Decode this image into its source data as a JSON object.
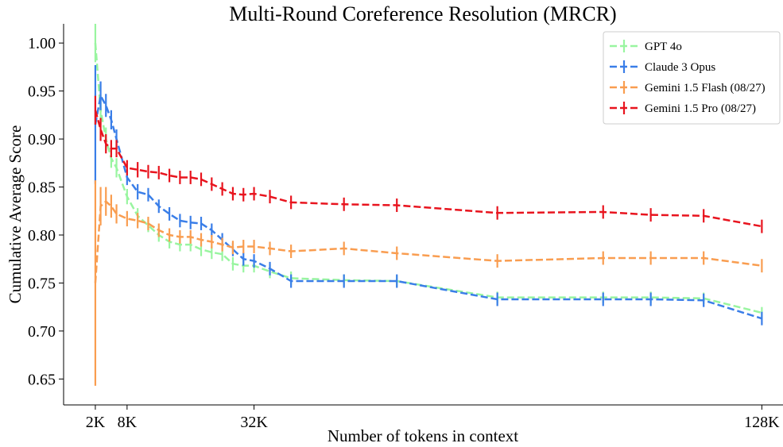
{
  "chart_data": {
    "type": "line",
    "title": "Multi-Round Coreference Resolution (MRCR)",
    "xlabel": "Number of tokens in context",
    "ylabel": "Cumulative Average Score",
    "x": [
      2000,
      3000,
      4000,
      5000,
      6000,
      8000,
      10000,
      12000,
      14000,
      16000,
      18000,
      20000,
      22000,
      24000,
      26000,
      28000,
      30000,
      32000,
      35000,
      39000,
      49000,
      59000,
      78000,
      98000,
      107000,
      117000,
      128000
    ],
    "series": [
      {
        "name": "GPT 4o",
        "color": "#99f5a0",
        "values": [
          1.0,
          0.93,
          0.9,
          0.88,
          0.87,
          0.84,
          0.82,
          0.81,
          0.8,
          0.793,
          0.79,
          0.79,
          0.785,
          0.782,
          0.78,
          0.77,
          0.768,
          0.768,
          0.762,
          0.755,
          0.753,
          0.752,
          0.735,
          0.735,
          0.735,
          0.734,
          0.719
        ],
        "errors": [
          0.02,
          0.015,
          0.012,
          0.01,
          0.01,
          0.008,
          0.008,
          0.007,
          0.007,
          0.007,
          0.007,
          0.007,
          0.007,
          0.007,
          0.007,
          0.007,
          0.007,
          0.007,
          0.007,
          0.007,
          0.006,
          0.006,
          0.006,
          0.006,
          0.006,
          0.006,
          0.006
        ]
      },
      {
        "name": "Claude 3 Opus",
        "color": "#3a7ee8",
        "values": [
          0.915,
          0.945,
          0.935,
          0.92,
          0.9,
          0.86,
          0.845,
          0.842,
          0.83,
          0.822,
          0.815,
          0.813,
          0.812,
          0.805,
          0.795,
          0.785,
          0.775,
          0.773,
          0.765,
          0.752,
          0.752,
          0.752,
          0.733,
          0.733,
          0.733,
          0.732,
          0.713
        ],
        "errors": [
          0.062,
          0.015,
          0.012,
          0.01,
          0.01,
          0.008,
          0.008,
          0.007,
          0.007,
          0.007,
          0.007,
          0.007,
          0.007,
          0.007,
          0.007,
          0.007,
          0.007,
          0.007,
          0.007,
          0.007,
          0.007,
          0.007,
          0.007,
          0.007,
          0.007,
          0.007,
          0.007
        ]
      },
      {
        "name": "Gemini 1.5 Flash (08/27)",
        "color": "#f99d50",
        "values": [
          0.75,
          0.83,
          0.835,
          0.83,
          0.822,
          0.817,
          0.815,
          0.812,
          0.805,
          0.8,
          0.798,
          0.798,
          0.795,
          0.793,
          0.79,
          0.787,
          0.788,
          0.788,
          0.786,
          0.783,
          0.786,
          0.781,
          0.773,
          0.776,
          0.776,
          0.776,
          0.768
        ],
        "errors": [
          0.107,
          0.02,
          0.015,
          0.012,
          0.01,
          0.008,
          0.008,
          0.007,
          0.007,
          0.007,
          0.007,
          0.007,
          0.007,
          0.007,
          0.007,
          0.007,
          0.007,
          0.007,
          0.007,
          0.007,
          0.007,
          0.007,
          0.007,
          0.007,
          0.007,
          0.007,
          0.007
        ]
      },
      {
        "name": "Gemini 1.5 Pro (08/27)",
        "color": "#e8141e",
        "values": [
          0.93,
          0.91,
          0.895,
          0.89,
          0.89,
          0.87,
          0.868,
          0.866,
          0.865,
          0.862,
          0.86,
          0.86,
          0.858,
          0.853,
          0.848,
          0.843,
          0.842,
          0.843,
          0.84,
          0.834,
          0.832,
          0.831,
          0.823,
          0.824,
          0.821,
          0.82,
          0.809
        ],
        "errors": [
          0.015,
          0.012,
          0.01,
          0.009,
          0.009,
          0.008,
          0.008,
          0.007,
          0.007,
          0.007,
          0.007,
          0.007,
          0.007,
          0.007,
          0.007,
          0.007,
          0.007,
          0.007,
          0.007,
          0.007,
          0.007,
          0.007,
          0.007,
          0.007,
          0.007,
          0.007,
          0.007
        ]
      }
    ],
    "xlim": [
      -4000,
      132000
    ],
    "xticks": [
      {
        "value": 2000,
        "label": "2K"
      },
      {
        "value": 8000,
        "label": "8K"
      },
      {
        "value": 32000,
        "label": "32K"
      },
      {
        "value": 128000,
        "label": "128K"
      }
    ],
    "ylim": [
      0.623,
      1.02
    ],
    "yticks": [
      0.65,
      {
        "value": 0.7,
        "label": "0.70"
      },
      0.75,
      {
        "value": 0.8,
        "label": "0.80"
      },
      0.85,
      {
        "value": 0.9,
        "label": "0.90"
      },
      0.95,
      {
        "value": 1.0,
        "label": "1.00"
      }
    ],
    "legend": "upper right"
  }
}
